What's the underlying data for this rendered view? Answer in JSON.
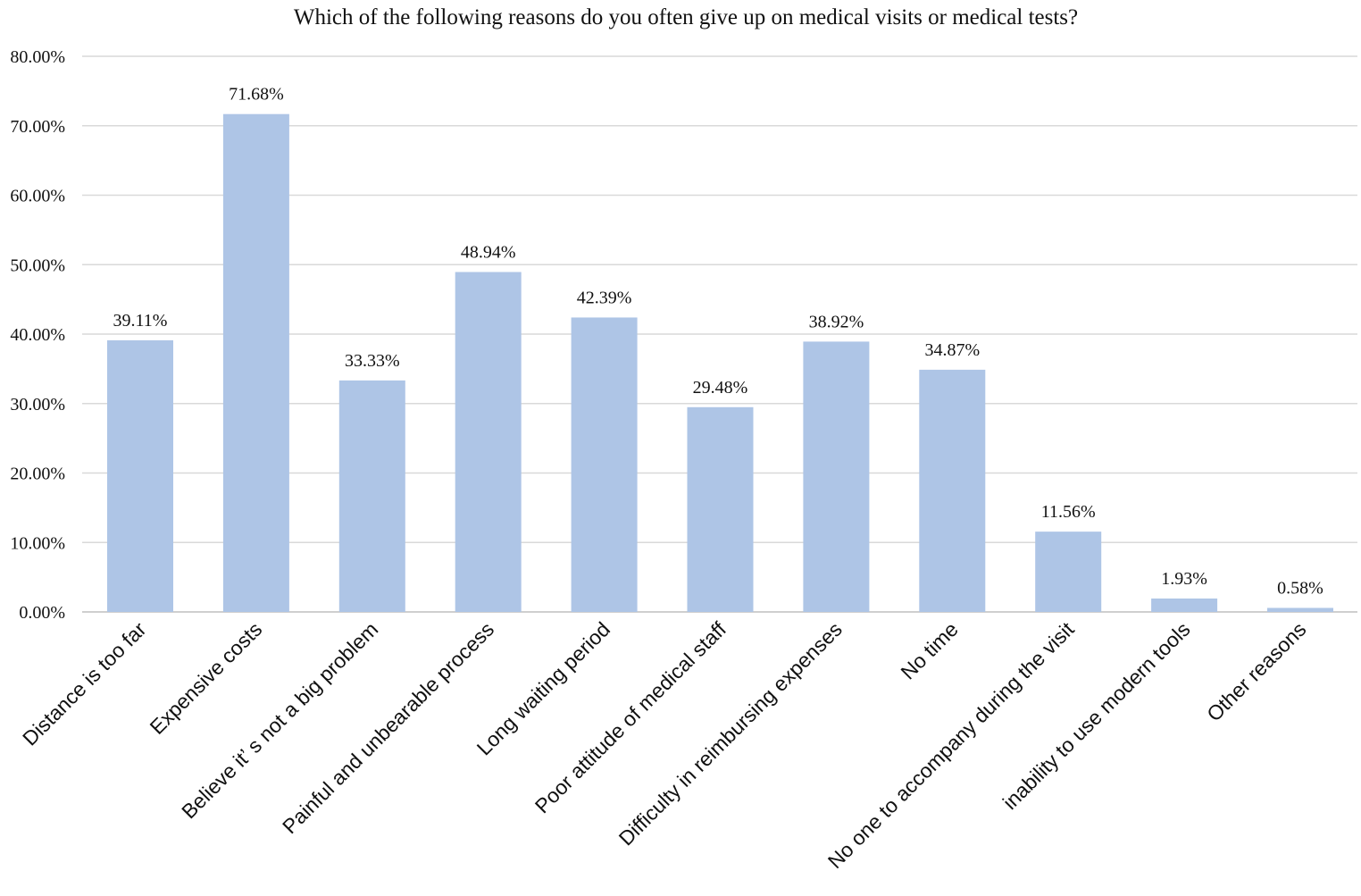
{
  "chart_data": {
    "type": "bar",
    "title": "Which of the following reasons do you often give up on medical visits or medical tests?",
    "xlabel": "",
    "ylabel": "",
    "categories": [
      "Distance is too far",
      "Expensive costs",
      "Believe it’ s not a big problem",
      "Painful and unbearable process",
      "Long waiting period",
      "Poor attitude of medical staff",
      "Difficulty in reimbursing expenses",
      "No time",
      "No one to accompany during the visit",
      "inability to use modern tools",
      "Other reasons"
    ],
    "values": [
      39.11,
      71.68,
      33.33,
      48.94,
      42.39,
      29.48,
      38.92,
      34.87,
      11.56,
      1.93,
      0.58
    ],
    "data_labels": [
      "39.11%",
      "71.68%",
      "33.33%",
      "48.94%",
      "42.39%",
      "29.48%",
      "38.92%",
      "34.87%",
      "11.56%",
      "1.93%",
      "0.58%"
    ],
    "y_ticks": [
      "0.00%",
      "10.00%",
      "20.00%",
      "30.00%",
      "40.00%",
      "50.00%",
      "60.00%",
      "70.00%",
      "80.00%"
    ],
    "ylim": [
      0,
      80
    ],
    "grid": true,
    "legend": "none",
    "bar_color": "#aec5e6"
  }
}
